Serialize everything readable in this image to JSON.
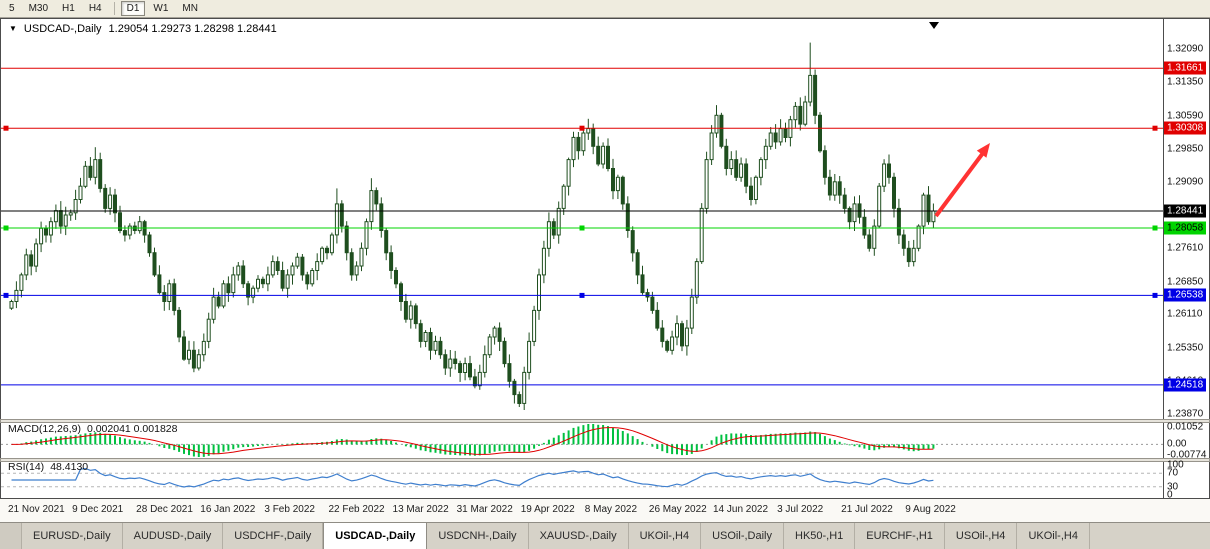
{
  "toolbar": {
    "timeframes": [
      {
        "label": "5",
        "active": false
      },
      {
        "label": "M30",
        "active": false
      },
      {
        "label": "H1",
        "active": false
      },
      {
        "label": "H4",
        "active": false
      },
      {
        "label": "D1",
        "active": true
      },
      {
        "label": "W1",
        "active": false
      },
      {
        "label": "MN",
        "active": false
      }
    ]
  },
  "chart": {
    "symbol_title": "USDCAD-,Daily",
    "ohlc_text": "1.29054 1.29273 1.28298 1.28441",
    "price_axis_ticks": [
      "1.32090",
      "1.31350",
      "1.30590",
      "1.29850",
      "1.29090",
      "1.28350",
      "1.27610",
      "1.26850",
      "1.26110",
      "1.25350",
      "1.24610",
      "1.23870"
    ],
    "hlines": [
      {
        "label": "1.31661",
        "price": 1.31661,
        "color": "#e00000",
        "text_color": "#ffffff",
        "handles": false
      },
      {
        "label": "1.30308",
        "price": 1.30308,
        "color": "#e00000",
        "text_color": "#ffffff",
        "handles": true
      },
      {
        "label": "1.28441",
        "price": 1.28441,
        "color": "#000000",
        "text_color": "#ffffff",
        "handles": false,
        "role": "bid-line"
      },
      {
        "label": "1.28058",
        "price": 1.28058,
        "color": "#00d400",
        "text_color": "#000000",
        "handles": true
      },
      {
        "label": "1.26538",
        "price": 1.26538,
        "color": "#0000e6",
        "text_color": "#ffffff",
        "handles": true
      },
      {
        "label": "1.24518",
        "price": 1.24518,
        "color": "#0000e6",
        "text_color": "#ffffff",
        "handles": false
      }
    ],
    "colors": {
      "bar": "#1f4e1f",
      "bull": "#ffffff",
      "bear": "#1f4e1f",
      "arrow": "#ff3333"
    }
  },
  "chart_data": {
    "type": "candlestick",
    "symbol": "USDCAD",
    "timeframe": "Daily",
    "x_labels": [
      "21 Nov 2021",
      "9 Dec 2021",
      "28 Dec 2021",
      "16 Jan 2022",
      "3 Feb 2022",
      "22 Feb 2022",
      "13 Mar 2022",
      "31 Mar 2022",
      "19 Apr 2022",
      "8 May 2022",
      "26 May 2022",
      "14 Jun 2022",
      "3 Jul 2022",
      "21 Jul 2022",
      "9 Aug 2022"
    ],
    "closes": [
      1.264,
      1.2665,
      1.27,
      1.2745,
      1.272,
      1.277,
      1.2805,
      1.279,
      1.282,
      1.2845,
      1.281,
      1.2835,
      1.284,
      1.287,
      1.29,
      1.2945,
      1.292,
      1.296,
      1.2895,
      1.285,
      1.288,
      1.284,
      1.28,
      1.279,
      1.281,
      1.28,
      1.282,
      1.279,
      1.275,
      1.27,
      1.266,
      1.264,
      1.268,
      1.262,
      1.256,
      1.251,
      1.253,
      1.249,
      1.252,
      1.255,
      1.26,
      1.265,
      1.263,
      1.268,
      1.266,
      1.27,
      1.272,
      1.268,
      1.265,
      1.267,
      1.269,
      1.268,
      1.27,
      1.273,
      1.271,
      1.267,
      1.27,
      1.272,
      1.274,
      1.27,
      1.268,
      1.271,
      1.273,
      1.276,
      1.275,
      1.279,
      1.286,
      1.281,
      1.275,
      1.27,
      1.272,
      1.276,
      1.282,
      1.289,
      1.286,
      1.28,
      1.275,
      1.271,
      1.268,
      1.264,
      1.26,
      1.263,
      1.259,
      1.255,
      1.257,
      1.253,
      1.255,
      1.252,
      1.249,
      1.251,
      1.25,
      1.248,
      1.25,
      1.247,
      1.245,
      1.248,
      1.252,
      1.256,
      1.258,
      1.255,
      1.25,
      1.246,
      1.243,
      1.241,
      1.248,
      1.255,
      1.262,
      1.27,
      1.276,
      1.282,
      1.279,
      1.285,
      1.29,
      1.296,
      1.301,
      1.298,
      1.302,
      1.303,
      1.299,
      1.295,
      1.299,
      1.294,
      1.289,
      1.292,
      1.286,
      1.28,
      1.275,
      1.27,
      1.266,
      1.265,
      1.262,
      1.258,
      1.255,
      1.253,
      1.256,
      1.259,
      1.254,
      1.258,
      1.265,
      1.273,
      1.285,
      1.296,
      1.302,
      1.306,
      1.299,
      1.294,
      1.296,
      1.292,
      1.295,
      1.29,
      1.287,
      1.292,
      1.296,
      1.299,
      1.302,
      1.3,
      1.303,
      1.301,
      1.305,
      1.308,
      1.304,
      1.309,
      1.315,
      1.306,
      1.298,
      1.292,
      1.288,
      1.291,
      1.288,
      1.285,
      1.282,
      1.286,
      1.283,
      1.279,
      1.276,
      1.281,
      1.29,
      1.295,
      1.292,
      1.285,
      1.279,
      1.276,
      1.273,
      1.276,
      1.281,
      1.288,
      1.282,
      1.28441
    ],
    "wick_overrides": {
      "17": {
        "high": 1.2988
      },
      "66": {
        "high": 1.2895
      },
      "73": {
        "high": 1.2918
      },
      "103": {
        "low": 1.2402
      },
      "117": {
        "high": 1.3052
      },
      "143": {
        "high": 1.3083
      },
      "162": {
        "high": 1.3224
      }
    }
  },
  "indicators": {
    "macd": {
      "name": "MACD(12,26,9)",
      "values": "0.002041 0.001828",
      "axis_max": "0.01052",
      "axis_zero": "0.00",
      "axis_min": "-0.00774",
      "histogram_color": "#00c040",
      "signal_color": "#e00000"
    },
    "rsi": {
      "name": "RSI(14)",
      "value": "48.4130",
      "axis": [
        "100",
        "70",
        "30",
        "0"
      ],
      "levels": [
        70,
        30
      ],
      "line_color": "#3f7fce"
    }
  },
  "tabs": {
    "items": [
      "EURUSD-,Daily",
      "AUDUSD-,Daily",
      "USDCHF-,Daily",
      "USDCAD-,Daily",
      "USDCNH-,Daily",
      "XAUUSD-,Daily",
      "UKOil-,H4",
      "USOil-,Daily",
      "HK50-,H1",
      "EURCHF-,H1",
      "USOil-,H4",
      "UKOil-,H4"
    ],
    "active_index": 3
  }
}
